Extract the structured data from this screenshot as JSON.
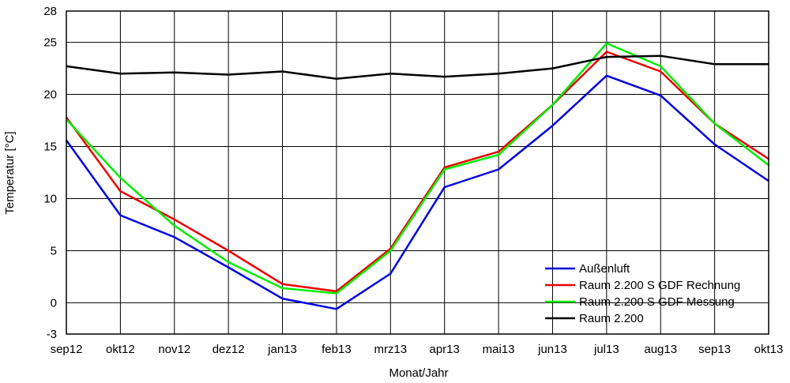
{
  "chart_data": {
    "type": "line",
    "title": "",
    "xlabel": "Monat/Jahr",
    "ylabel": "Temperatur [°C]",
    "ylim": [
      -3,
      28
    ],
    "yticks": [
      -3,
      0,
      5,
      10,
      15,
      20,
      25,
      28
    ],
    "grid": true,
    "legend_position": "bottom-right",
    "categories": [
      "sep12",
      "okt12",
      "nov12",
      "dez12",
      "jan13",
      "feb13",
      "mrz13",
      "apr13",
      "mai13",
      "jun13",
      "jul13",
      "aug13",
      "sep13",
      "okt13"
    ],
    "series": [
      {
        "name": "Außenluft",
        "color": "#0000dd",
        "values": [
          15.6,
          8.4,
          6.3,
          3.4,
          0.4,
          -0.6,
          2.8,
          11.1,
          12.8,
          17.0,
          21.8,
          19.9,
          15.2,
          11.7
        ]
      },
      {
        "name": "Raum 2.200 S GDF Rechnung",
        "color": "#ee0000",
        "values": [
          17.8,
          10.7,
          8.0,
          5.0,
          1.8,
          1.1,
          5.2,
          13.0,
          14.5,
          19.0,
          24.1,
          22.2,
          17.2,
          13.8
        ]
      },
      {
        "name": "Raum 2.200 S GDF Messung",
        "color": "#00ee00",
        "values": [
          17.6,
          12.0,
          7.4,
          3.9,
          1.4,
          0.9,
          5.0,
          12.8,
          14.2,
          19.0,
          24.9,
          22.7,
          17.2,
          13.2
        ]
      },
      {
        "name": "Raum 2.200",
        "color": "#000000",
        "values": [
          22.7,
          22.0,
          22.1,
          21.9,
          22.2,
          21.5,
          22.0,
          21.7,
          22.0,
          22.5,
          23.6,
          23.7,
          22.9,
          22.9
        ]
      }
    ]
  }
}
